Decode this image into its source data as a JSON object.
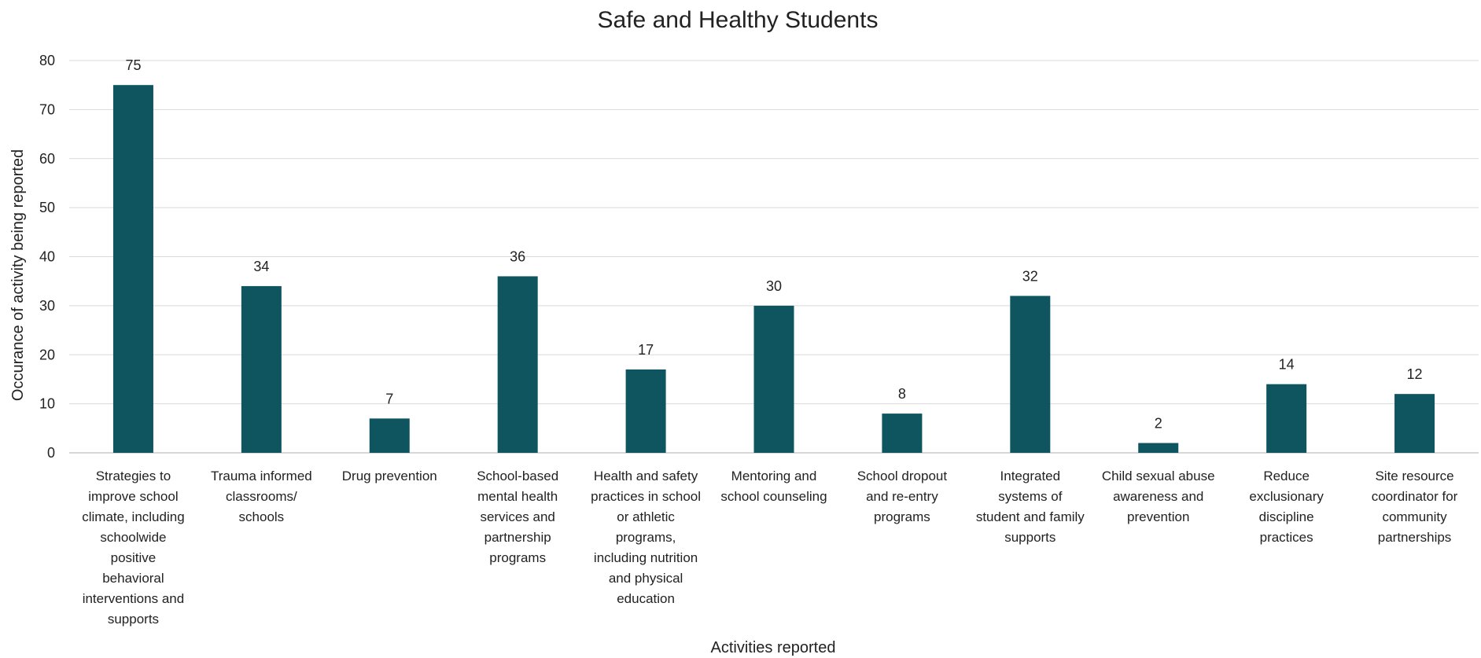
{
  "chart_data": {
    "type": "bar",
    "title": "Safe and Healthy Students",
    "xlabel": "Activities reported",
    "ylabel": "Occurance of activity being reported",
    "ylim": [
      0,
      80
    ],
    "yticks": [
      0,
      10,
      20,
      30,
      40,
      50,
      60,
      70,
      80
    ],
    "grid": true,
    "legend": "none",
    "bar_color": "#0f5560",
    "categories": [
      [
        "Strategies to",
        "improve school",
        "climate, including",
        "schoolwide",
        "positive",
        "behavioral",
        "interventions and",
        "supports"
      ],
      [
        "Trauma informed",
        "classrooms/",
        "schools"
      ],
      [
        "Drug prevention"
      ],
      [
        "School-based",
        "mental health",
        "services and",
        "partnership",
        "programs"
      ],
      [
        "Health and safety",
        "practices in school",
        "or athletic",
        "programs,",
        "including nutrition",
        "and physical",
        "education"
      ],
      [
        "Mentoring and",
        "school counseling"
      ],
      [
        "School dropout",
        "and re-entry",
        "programs"
      ],
      [
        "Integrated",
        "systems of",
        "student and family",
        "supports"
      ],
      [
        "Child sexual abuse",
        "awareness and",
        "prevention"
      ],
      [
        "Reduce",
        "exclusionary",
        "discipline",
        "practices"
      ],
      [
        "Site resource",
        "coordinator for",
        "community",
        "partnerships"
      ]
    ],
    "values": [
      75,
      34,
      7,
      36,
      17,
      30,
      8,
      32,
      2,
      14,
      12
    ]
  }
}
